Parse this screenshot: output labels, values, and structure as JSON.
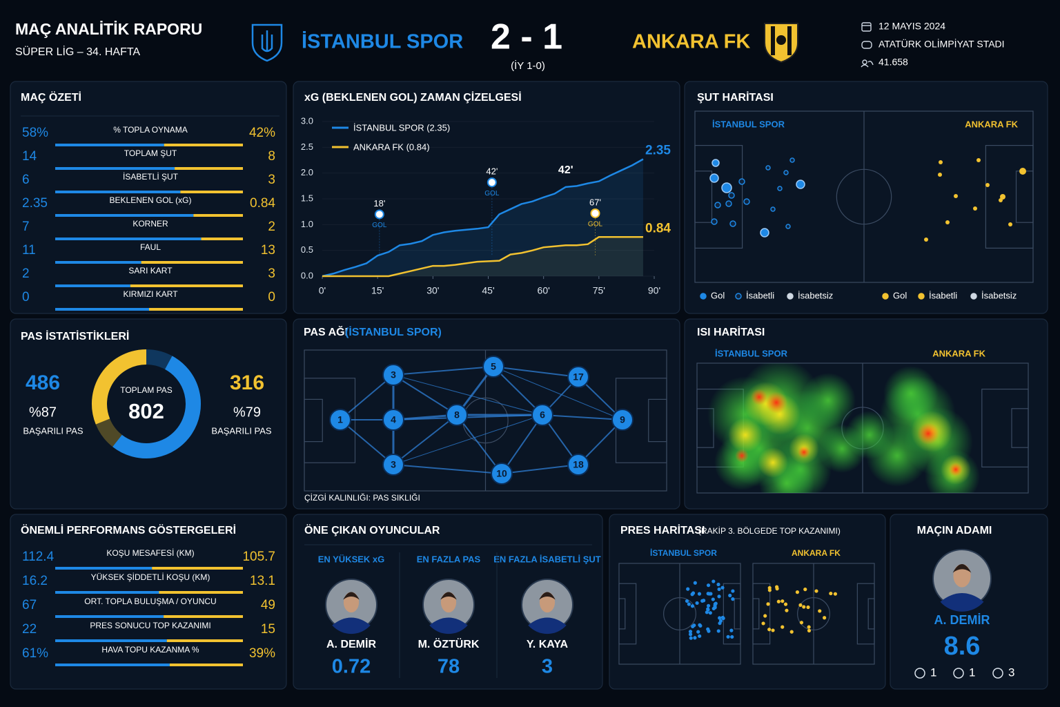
{
  "header": {
    "title": "MAÇ ANALİTİK RAPORU",
    "subtitle": "SÜPER LİG – 34. HAFTA",
    "home_team": "İSTANBUL SPOR",
    "score": "2 - 1",
    "half_time": "(İY 1-0)",
    "away_team": "ANKARA FK",
    "date": "12 MAYIS 2024",
    "stadium": "ATATÜRK OLİMPİYAT STADI",
    "attendance": "41.658"
  },
  "summary": {
    "title": "MAÇ ÖZETİ",
    "rows": [
      {
        "label": "% TOPLA OYNAMA",
        "home": 58,
        "home_label": "58%",
        "away": 42,
        "away_label": "42%"
      },
      {
        "label": "TOPLAM ŞUT",
        "home": 14,
        "away": 8
      },
      {
        "label": "İSABETLİ ŞUT",
        "home": 6,
        "away": 3
      },
      {
        "label": "BEKLENEN GOL (xG)",
        "home": 2.35,
        "away": 0.84
      },
      {
        "label": "KORNER",
        "home": 7,
        "away": 2
      },
      {
        "label": "FAUL",
        "home": 11,
        "away": 13
      },
      {
        "label": "SARI KART",
        "home": 2,
        "away": 3
      },
      {
        "label": "KIRMIZI KART",
        "home": 0,
        "away": 0
      }
    ]
  },
  "chart_data": [
    {
      "type": "line",
      "title": "xG (BEKLENEN GOL) ZAMAN ÇİZELGESİ",
      "x": [
        0,
        3,
        6,
        9,
        12,
        15,
        18,
        21,
        24,
        27,
        30,
        33,
        36,
        39,
        42,
        45,
        48,
        51,
        54,
        57,
        60,
        63,
        66,
        69,
        72,
        75,
        78,
        81,
        84,
        87
      ],
      "series": [
        {
          "name": "İSTANBUL SPOR (2.35)",
          "color": "#1e88e5",
          "end_label": "2.35",
          "values": [
            0,
            0.05,
            0.12,
            0.18,
            0.25,
            0.4,
            0.47,
            0.6,
            0.63,
            0.68,
            0.8,
            0.85,
            0.88,
            0.9,
            0.92,
            0.95,
            1.2,
            1.3,
            1.4,
            1.45,
            1.53,
            1.6,
            1.73,
            1.75,
            1.8,
            1.84,
            1.95,
            2.05,
            2.15,
            2.27
          ]
        },
        {
          "name": "ANKARA FK (0.84)",
          "color": "#f2c230",
          "end_label": "0.84",
          "values": [
            0,
            0,
            0,
            0,
            0,
            0,
            0,
            0.05,
            0.1,
            0.15,
            0.2,
            0.2,
            0.22,
            0.25,
            0.28,
            0.29,
            0.3,
            0.42,
            0.45,
            0.5,
            0.56,
            0.58,
            0.6,
            0.6,
            0.62,
            0.76,
            0.76,
            0.76,
            0.76,
            0.76
          ]
        }
      ],
      "xlim": [
        0,
        90
      ],
      "ylim": [
        0,
        3
      ],
      "xticks": [
        {
          "value": 0,
          "label": "0'"
        },
        {
          "value": 15,
          "label": "15'"
        },
        {
          "value": 30,
          "label": "30'"
        },
        {
          "value": 45,
          "label": "45'"
        },
        {
          "value": 60,
          "label": "60'"
        },
        {
          "value": 75,
          "label": "75'"
        },
        {
          "value": 90,
          "label": "90'"
        }
      ],
      "yticks": [
        {
          "value": 0,
          "label": "0.0"
        },
        {
          "value": 0.5,
          "label": "0.5"
        },
        {
          "value": 1,
          "label": "1.0"
        },
        {
          "value": 1.5,
          "label": "1.5"
        },
        {
          "value": 2,
          "label": "2.0"
        },
        {
          "value": 2.5,
          "label": "2.5"
        },
        {
          "value": 3,
          "label": "3.0"
        }
      ],
      "annotations": [
        {
          "x": 15.5,
          "y": 1.4,
          "label": "18'",
          "note": "GOL",
          "color": "#1e88e5"
        },
        {
          "x": 46,
          "y": 2.02,
          "label": "42'",
          "note": "GOL",
          "color": "#1e88e5"
        },
        {
          "x": 74,
          "y": 1.42,
          "label": "67'",
          "note": "GOL",
          "color": "#f2c230"
        },
        {
          "x": 66,
          "y": 2.05,
          "label": "42'"
        }
      ]
    },
    {
      "type": "pie",
      "title": "PAS İSTATİSTİKLERİ",
      "center_label": "TOPLAM PAS",
      "total": 802,
      "values": [
        486,
        316
      ],
      "colors": [
        "#1e88e5",
        "#f2c230"
      ],
      "accuracy": [
        {
          "value": 87,
          "label": "%87"
        },
        {
          "value": 79,
          "label": "%79"
        }
      ],
      "caption": "BAŞARILI PAS"
    }
  ],
  "shot_map": {
    "title": "ŞUT HARİTASI",
    "home": "İSTANBUL SPOR",
    "away": "ANKARA FK",
    "legend": [
      "Gol",
      "İsabetli",
      "İsabetsiz"
    ]
  },
  "pass_network": {
    "title": "PAS AĞI",
    "team": "(İSTANBUL SPOR)",
    "nodes": [
      "1",
      "3",
      "4",
      "3",
      "8",
      "5",
      "6",
      "10",
      "17",
      "9",
      "18"
    ],
    "note": "ÇİZGİ KALINLIĞI: PAS SIKLIĞI"
  },
  "heat_map": {
    "title": "ISI HARİTASI",
    "home": "İSTANBUL SPOR",
    "away": "ANKARA FK"
  },
  "kpi": {
    "title": "ÖNEMLİ PERFORMANS GÖSTERGELERİ",
    "rows": [
      {
        "label": "KOŞU MESAFESİ (KM)",
        "home": 112.4,
        "away": 105.7
      },
      {
        "label": "YÜKSEK ŞİDDETLİ KOŞU (KM)",
        "home": 16.2,
        "away": 13.1
      },
      {
        "label": "ORT. TOPLA BULUŞMA / OYUNCU",
        "home": 67,
        "away": 49
      },
      {
        "label": "PRES SONUCU TOP KAZANIMI",
        "home": 22,
        "away": 15
      },
      {
        "label": "HAVA TOPU KAZANMA %",
        "home": 61,
        "home_label": "61%",
        "away": 39,
        "away_label": "39%"
      }
    ]
  },
  "players": {
    "title": "ÖNE ÇIKAN OYUNCULAR",
    "items": [
      {
        "category": "EN YÜKSEK xG",
        "name": "A. DEMİR",
        "value": 0.72
      },
      {
        "category": "EN FAZLA PAS",
        "name": "M. ÖZTÜRK",
        "value": 78
      },
      {
        "category": "EN FAZLA İSABETLİ ŞUT",
        "name": "Y. KAYA",
        "value": 3
      }
    ]
  },
  "press_map": {
    "title": "PRES HARİTASI",
    "subtitle": "(RAKİP 3. BÖLGEDE TOP KAZANIMI)",
    "home": "İSTANBUL SPOR",
    "away": "ANKARA FK"
  },
  "motm": {
    "title": "MAÇIN ADAMI",
    "name": "A. DEMİR",
    "rating": 8.6,
    "goals": 1,
    "assists": 1,
    "shots": 3
  }
}
